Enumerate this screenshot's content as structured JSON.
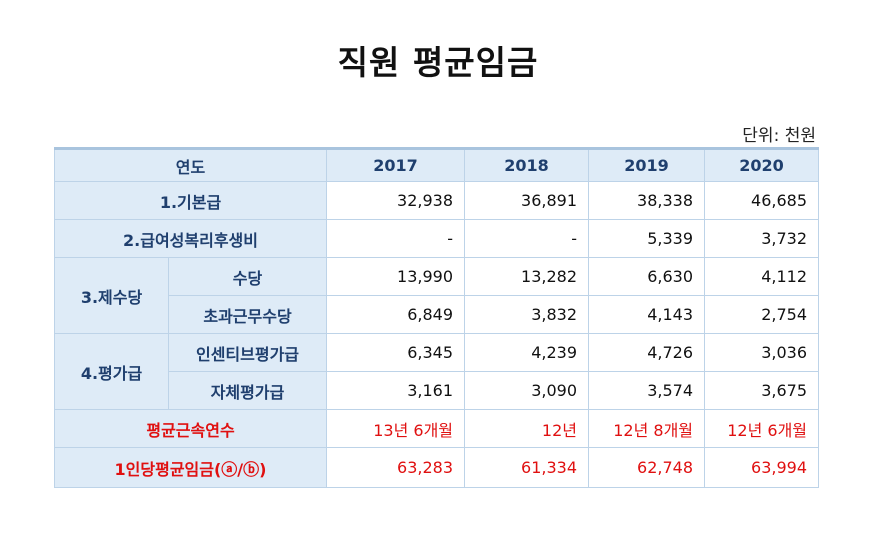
{
  "title": "직원 평균임금",
  "unit_label": "단위: 천원",
  "table": {
    "header_label": "연도",
    "years": [
      "2017",
      "2018",
      "2019",
      "2020"
    ],
    "rows": [
      {
        "label": "1.기본급",
        "values": [
          "32,938",
          "36,891",
          "38,338",
          "46,685"
        ]
      },
      {
        "label": "2.급여성복리후생비",
        "values": [
          "-",
          "-",
          "5,339",
          "3,732"
        ]
      },
      {
        "group": "3.제수당",
        "label": "수당",
        "values": [
          "13,990",
          "13,282",
          "6,630",
          "4,112"
        ]
      },
      {
        "group": "3.제수당",
        "label": "초과근무수당",
        "values": [
          "6,849",
          "3,832",
          "4,143",
          "2,754"
        ]
      },
      {
        "group": "4.평가급",
        "label": "인센티브평가급",
        "values": [
          "6,345",
          "4,239",
          "4,726",
          "3,036"
        ]
      },
      {
        "group": "4.평가급",
        "label": "자체평가급",
        "values": [
          "3,161",
          "3,090",
          "3,574",
          "3,675"
        ]
      },
      {
        "label": "평균근속연수",
        "values": [
          "13년 6개월",
          "12년",
          "12년 8개월",
          "12년 6개월"
        ]
      },
      {
        "label": "1인당평균임금(ⓐ/ⓑ)",
        "values": [
          "63,283",
          "61,334",
          "62,748",
          "63,994"
        ]
      }
    ],
    "groups": {
      "allowances": "3.제수당",
      "evaluation": "4.평가급"
    }
  },
  "colors": {
    "header_bg": "#deebf7",
    "label_text": "#1f3f6e",
    "highlight_red": "#e01010",
    "border": "#bdd3e8"
  }
}
